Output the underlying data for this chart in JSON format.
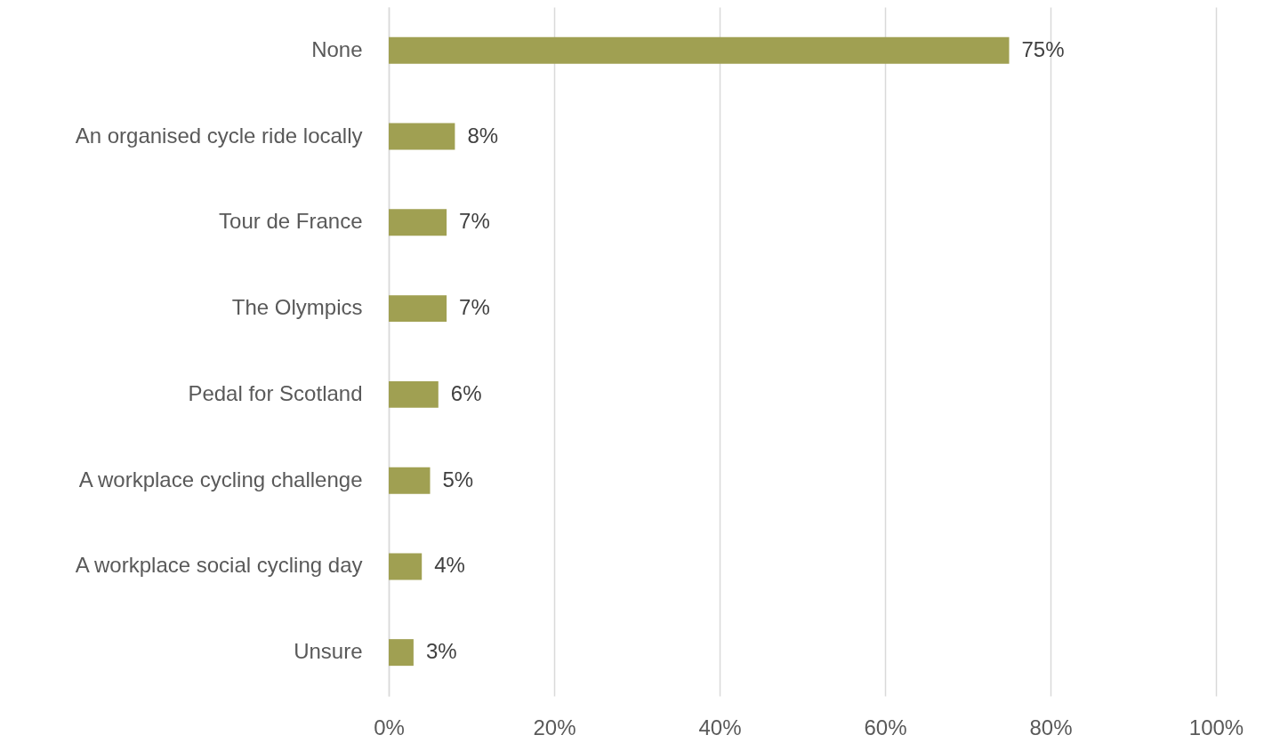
{
  "chart_data": {
    "type": "bar",
    "orientation": "horizontal",
    "categories": [
      "None",
      "An organised cycle ride locally",
      "Tour de France",
      "The Olympics",
      "Pedal for Scotland",
      "A workplace cycling challenge",
      "A workplace social cycling day",
      "Unsure"
    ],
    "values": [
      75,
      8,
      7,
      7,
      6,
      5,
      4,
      3
    ],
    "value_labels": [
      "75%",
      "8%",
      "7%",
      "7%",
      "6%",
      "5%",
      "4%",
      "3%"
    ],
    "color": "#a0a052",
    "xlim": [
      0,
      100
    ],
    "xticks": [
      {
        "value": 0,
        "label": "0%"
      },
      {
        "value": 20,
        "label": "20%"
      },
      {
        "value": 40,
        "label": "40%"
      },
      {
        "value": 60,
        "label": "60%"
      },
      {
        "value": 80,
        "label": "80%"
      },
      {
        "value": 100,
        "label": "100%"
      }
    ],
    "grid": "x"
  }
}
